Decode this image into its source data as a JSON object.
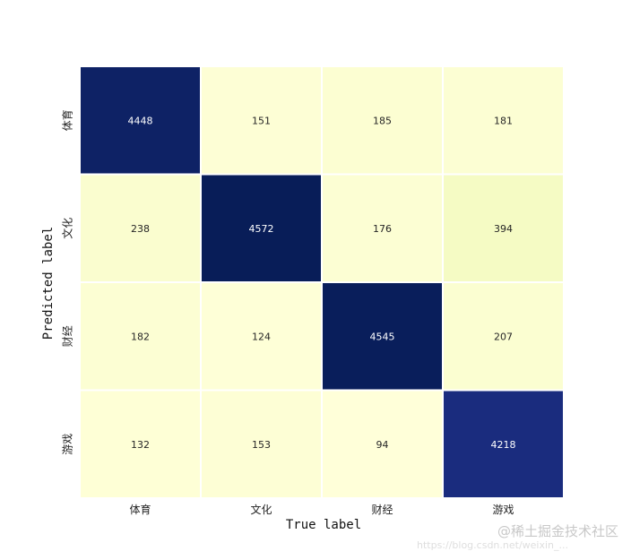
{
  "chart_data": {
    "type": "heatmap",
    "title": "",
    "xlabel": "True label",
    "ylabel": "Predicted label",
    "x_categories": [
      "体育",
      "文化",
      "财经",
      "游戏"
    ],
    "y_categories": [
      "体育",
      "文化",
      "财经",
      "游戏"
    ],
    "values": [
      [
        4448,
        151,
        185,
        181
      ],
      [
        238,
        4572,
        176,
        394
      ],
      [
        182,
        124,
        4545,
        207
      ],
      [
        132,
        153,
        94,
        4218
      ]
    ],
    "colormap": "YlGnBu",
    "grid": false,
    "legend": "none",
    "colorbar": false,
    "low_color": "#ffffd9",
    "high_color": "#081d58",
    "light_text_color": "#ffffff",
    "dark_text_color": "#262626"
  },
  "watermark": {
    "text": "@稀土掘金技术社区",
    "url": "https://blog.csdn.net/weixin_..."
  }
}
